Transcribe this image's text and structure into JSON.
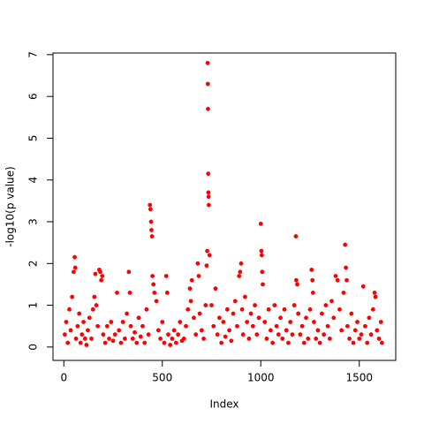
{
  "chart_data": {
    "type": "scatter",
    "x_label": "Index",
    "y_label": "-log10(p value)",
    "color": "#ff0000",
    "xlim": [
      -55,
      1685
    ],
    "ylim": [
      -0.32,
      7.04
    ],
    "xticks": [
      0,
      500,
      1000,
      1500
    ],
    "yticks": [
      0,
      1,
      2,
      3,
      4,
      5,
      6,
      7
    ],
    "x": [
      5,
      12,
      20,
      28,
      35,
      42,
      50,
      55,
      58,
      62,
      70,
      78,
      85,
      92,
      100,
      108,
      115,
      122,
      130,
      140,
      148,
      155,
      160,
      165,
      172,
      180,
      185,
      190,
      195,
      200,
      210,
      220,
      230,
      240,
      250,
      260,
      270,
      280,
      290,
      300,
      310,
      320,
      330,
      335,
      340,
      350,
      360,
      370,
      380,
      390,
      400,
      410,
      420,
      430,
      437,
      440,
      443,
      445,
      448,
      450,
      455,
      460,
      470,
      480,
      490,
      500,
      510,
      520,
      525,
      530,
      540,
      550,
      560,
      570,
      580,
      590,
      600,
      610,
      620,
      630,
      640,
      645,
      650,
      660,
      670,
      680,
      685,
      690,
      700,
      710,
      720,
      725,
      728,
      730,
      731,
      732,
      733,
      734,
      735,
      736,
      740,
      750,
      760,
      770,
      780,
      790,
      800,
      810,
      820,
      830,
      840,
      850,
      860,
      870,
      880,
      890,
      895,
      900,
      905,
      910,
      920,
      930,
      940,
      950,
      960,
      970,
      980,
      990,
      1000,
      1003,
      1005,
      1007,
      1010,
      1020,
      1030,
      1040,
      1050,
      1060,
      1070,
      1080,
      1090,
      1100,
      1110,
      1120,
      1130,
      1140,
      1150,
      1160,
      1170,
      1178,
      1180,
      1185,
      1190,
      1200,
      1210,
      1220,
      1230,
      1240,
      1250,
      1258,
      1262,
      1265,
      1270,
      1280,
      1290,
      1300,
      1310,
      1320,
      1330,
      1340,
      1350,
      1360,
      1370,
      1380,
      1390,
      1400,
      1410,
      1420,
      1428,
      1432,
      1436,
      1440,
      1450,
      1460,
      1470,
      1480,
      1490,
      1500,
      1510,
      1520,
      1530,
      1540,
      1550,
      1560,
      1570,
      1578,
      1582,
      1590,
      1600,
      1610,
      1615
    ],
    "values": [
      0.3,
      0.6,
      0.1,
      0.9,
      0.4,
      1.2,
      1.8,
      2.15,
      1.9,
      0.2,
      0.5,
      0.8,
      0.1,
      0.3,
      0.6,
      0.2,
      0.05,
      0.4,
      0.7,
      0.2,
      0.9,
      1.2,
      1.75,
      1.0,
      0.5,
      1.85,
      1.8,
      1.6,
      1.7,
      0.3,
      0.1,
      0.5,
      0.2,
      0.6,
      0.15,
      0.3,
      1.3,
      0.4,
      0.1,
      0.6,
      0.2,
      0.8,
      1.8,
      1.3,
      0.5,
      0.2,
      0.35,
      0.1,
      0.7,
      0.25,
      0.5,
      0.1,
      0.9,
      0.3,
      3.4,
      3.3,
      3.0,
      2.8,
      2.65,
      1.7,
      1.5,
      1.3,
      1.1,
      0.4,
      0.2,
      0.6,
      0.1,
      1.7,
      1.3,
      0.3,
      0.05,
      0.2,
      0.4,
      0.1,
      0.3,
      0.6,
      0.15,
      0.2,
      0.5,
      0.9,
      1.4,
      1.1,
      1.6,
      0.7,
      0.3,
      2.0,
      1.7,
      0.8,
      0.4,
      0.2,
      1.0,
      1.95,
      2.3,
      6.8,
      6.3,
      5.7,
      4.15,
      3.7,
      3.6,
      3.4,
      2.2,
      1.0,
      0.5,
      1.4,
      0.3,
      0.7,
      0.1,
      0.6,
      0.25,
      0.9,
      0.4,
      0.15,
      0.8,
      1.1,
      0.5,
      1.7,
      1.8,
      2.0,
      0.9,
      0.3,
      1.2,
      0.6,
      0.2,
      0.8,
      0.5,
      1.0,
      0.3,
      0.7,
      2.95,
      2.3,
      2.2,
      1.8,
      1.5,
      0.6,
      0.2,
      0.9,
      0.4,
      0.1,
      1.0,
      0.5,
      0.3,
      0.7,
      0.2,
      0.9,
      0.4,
      0.1,
      0.6,
      0.3,
      1.0,
      2.65,
      1.6,
      1.5,
      0.8,
      0.3,
      0.5,
      0.1,
      0.7,
      0.2,
      0.9,
      1.85,
      1.6,
      1.3,
      0.6,
      0.2,
      0.4,
      0.1,
      0.8,
      0.3,
      1.0,
      0.5,
      0.2,
      1.1,
      0.7,
      1.7,
      1.6,
      0.9,
      0.4,
      1.3,
      2.45,
      1.9,
      1.6,
      0.5,
      0.2,
      0.8,
      0.1,
      0.4,
      0.6,
      0.2,
      0.3,
      1.45,
      0.5,
      0.1,
      0.7,
      0.3,
      0.9,
      1.3,
      1.2,
      0.4,
      0.2,
      0.6,
      0.1
    ]
  }
}
